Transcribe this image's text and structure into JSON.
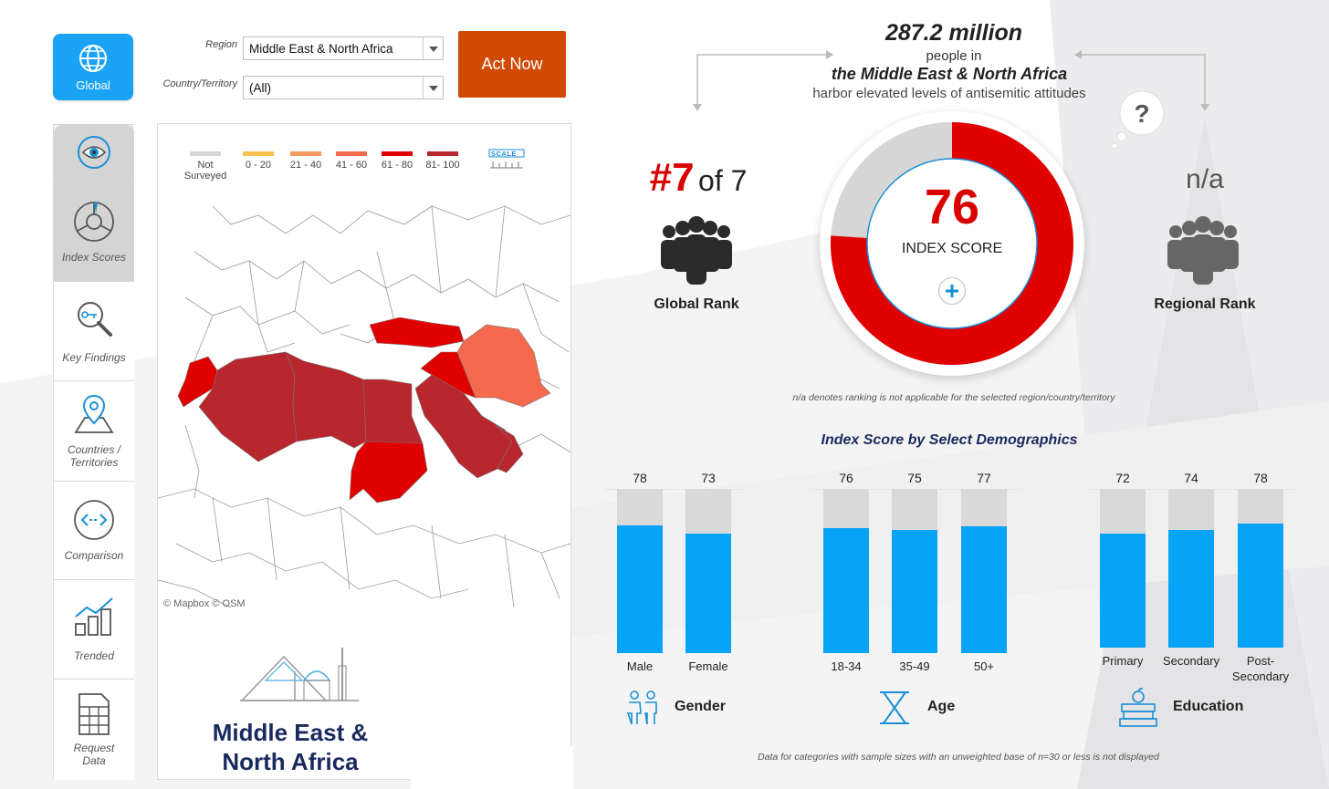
{
  "colors": {
    "accent": "#1aa3f5",
    "act": "#d14a04",
    "score_red": "#e00000",
    "bar_blue": "#06a3f7",
    "bar_gray": "#d9d9d9",
    "map_dark": "#b8262e",
    "map_red": "#e00000",
    "map_orange": "#f56a4f",
    "title_navy": "#1a2a5e"
  },
  "global_button": {
    "label": "Global",
    "icon": "globe-icon"
  },
  "filters": {
    "region_label": "Region",
    "region_value": "Middle East & North Africa",
    "country_label": "Country/Territory",
    "country_value": "(All)"
  },
  "act_button": {
    "label": "Act Now"
  },
  "sidenav": {
    "items": [
      {
        "label": "",
        "icon": "eye-icon"
      },
      {
        "label": "Index Scores",
        "icon": "gauge-icon"
      },
      {
        "label": "Key Findings",
        "icon": "magnifier-key-icon"
      },
      {
        "label": "Countries /",
        "label2": "Territories",
        "icon": "map-pin-icon"
      },
      {
        "label": "Comparison",
        "icon": "compare-arrows-icon"
      },
      {
        "label": "Trended",
        "icon": "trend-chart-icon"
      },
      {
        "label": "Request",
        "label2": "Data",
        "icon": "spreadsheet-icon"
      }
    ]
  },
  "map": {
    "legend": [
      {
        "label": "Not",
        "label2": "Surveyed",
        "color": "#d6d6d6"
      },
      {
        "label": "0 - 20",
        "color": "#f8c253"
      },
      {
        "label": "21 - 40",
        "color": "#f59a5a"
      },
      {
        "label": "41 - 60",
        "color": "#f56a4f"
      },
      {
        "label": "61 - 80",
        "color": "#e00000"
      },
      {
        "label": "81- 100",
        "color": "#b8262e"
      }
    ],
    "scale_label": "SCALE",
    "attribution": "© Mapbox  © OSM"
  },
  "region_title": {
    "line1": "Middle East &",
    "line2": "North Africa"
  },
  "headline": {
    "number": "287.2 million",
    "line2": "people in",
    "line3": "the Middle East & North Africa",
    "line4": "harbor elevated levels of antisemitic attitudes"
  },
  "global_rank": {
    "rank": "#7",
    "of": "of 7",
    "label": "Global Rank"
  },
  "regional_rank": {
    "value": "n/a",
    "label": "Regional Rank"
  },
  "index": {
    "score": "76",
    "label": "INDEX SCORE",
    "fraction": 0.76
  },
  "na_note": "n/a denotes ranking is not applicable for the selected region/country/territory",
  "demographics": {
    "title": "Index Score by Select Demographics",
    "groups": [
      {
        "name": "Gender",
        "icon": "people-icon",
        "bars": [
          {
            "label": "Male",
            "value": 78
          },
          {
            "label": "Female",
            "value": 73
          }
        ]
      },
      {
        "name": "Age",
        "icon": "hourglass-icon",
        "bars": [
          {
            "label": "18-34",
            "value": 76
          },
          {
            "label": "35-49",
            "value": 75
          },
          {
            "label": "50+",
            "value": 77
          }
        ]
      },
      {
        "name": "Education",
        "icon": "books-apple-icon",
        "bars": [
          {
            "label": "Primary",
            "value": 72
          },
          {
            "label": "Secondary",
            "value": 74
          },
          {
            "label": "Post-",
            "label2": "Secondary",
            "value": 78
          }
        ]
      }
    ]
  },
  "footnote": "Data for categories with sample sizes with an unweighted base of n=30 or less is not displayed"
}
